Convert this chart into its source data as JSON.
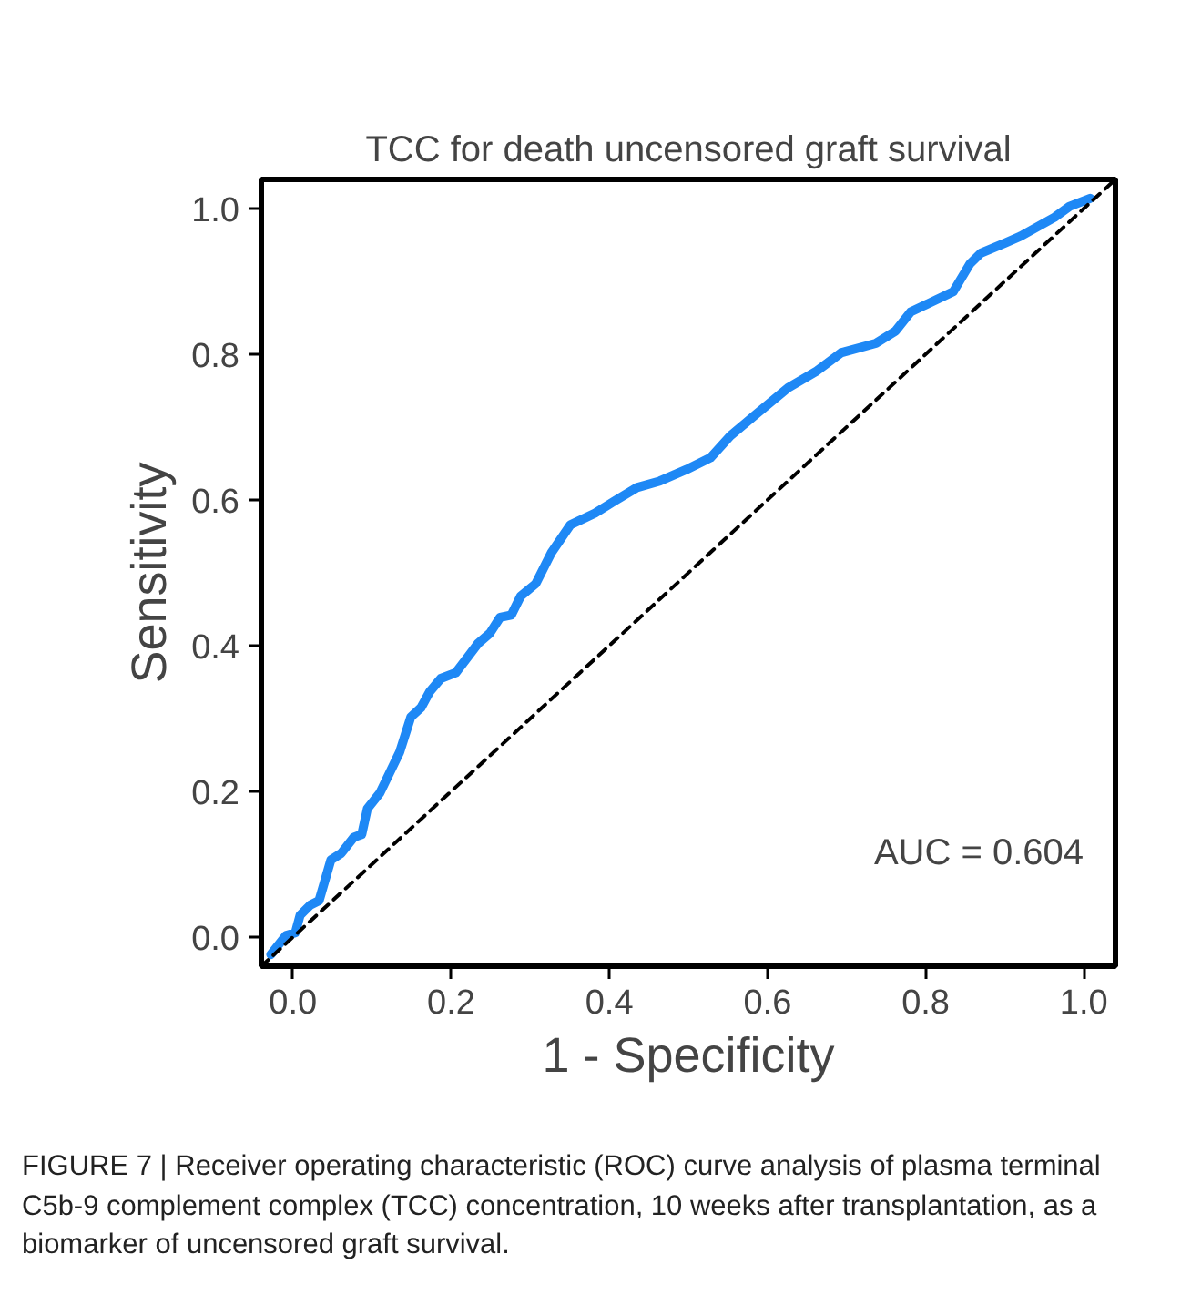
{
  "chart_data": {
    "type": "line",
    "title": "TCC for death uncensored graft survival",
    "xlabel": "1 - Specificity",
    "ylabel": "Sensitivity",
    "xlim": [
      -0.04,
      1.04
    ],
    "ylim": [
      -0.04,
      1.04
    ],
    "xticks": [
      {
        "value": 0,
        "label": "0.0"
      },
      0.2,
      0.4,
      0.6,
      0.8,
      {
        "value": 1,
        "label": "1.0"
      }
    ],
    "yticks": [
      {
        "value": 0,
        "label": "0.0"
      },
      0.2,
      0.4,
      0.6,
      0.8,
      {
        "value": 1,
        "label": "1.0"
      }
    ],
    "grid": false,
    "annotations": [
      "AUC = 0.604",
      "FIGURE 7 | Receiver operating characteristic (ROC) curve analysis of plasma terminal C5b-9 complement complex (TCC) concentration, 10 weeks after transplantation, as a biomarker of uncensored graft survival."
    ],
    "series": [
      {
        "color": "#1e88f5",
        "line_style": "solid",
        "x": [
          -0.028,
          -0.009,
          0.003,
          0.009,
          0.022,
          0.033,
          0.048,
          0.061,
          0.077,
          0.087,
          0.094,
          0.11,
          0.135,
          0.149,
          0.162,
          0.173,
          0.187,
          0.206,
          0.234,
          0.249,
          0.262,
          0.276,
          0.288,
          0.307,
          0.327,
          0.351,
          0.382,
          0.406,
          0.435,
          0.464,
          0.498,
          0.528,
          0.553,
          0.587,
          0.626,
          0.661,
          0.693,
          0.737,
          0.762,
          0.781,
          0.835,
          0.856,
          0.87,
          0.901,
          0.92,
          0.963,
          0.982,
          1.008
        ],
        "values": [
          -0.024,
          0.002,
          0.006,
          0.03,
          0.044,
          0.05,
          0.106,
          0.115,
          0.137,
          0.141,
          0.176,
          0.198,
          0.254,
          0.302,
          0.315,
          0.337,
          0.355,
          0.363,
          0.403,
          0.417,
          0.439,
          0.442,
          0.468,
          0.485,
          0.528,
          0.566,
          0.582,
          0.598,
          0.617,
          0.626,
          0.642,
          0.658,
          0.688,
          0.719,
          0.754,
          0.776,
          0.802,
          0.815,
          0.832,
          0.858,
          0.886,
          0.924,
          0.939,
          0.953,
          0.962,
          0.988,
          1.003,
          1.014
        ]
      },
      {
        "color": "#000000",
        "line_style": "dashed",
        "x": [
          -0.04,
          1.04
        ],
        "values": [
          -0.04,
          1.04
        ]
      }
    ]
  }
}
